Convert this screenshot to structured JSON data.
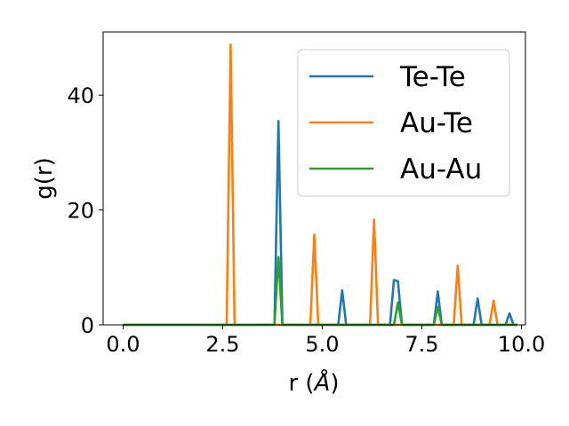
{
  "chart_data": {
    "type": "line",
    "ylabel": "g(r)",
    "xlabel_prefix": "r (",
    "xlabel_unit": "Å",
    "xlabel_suffix": ")",
    "xlim": [
      -0.5,
      10.1
    ],
    "ylim": [
      0,
      51
    ],
    "xticks": [
      0.0,
      2.5,
      5.0,
      7.5,
      10.0
    ],
    "xtick_labels": [
      "0.0",
      "2.5",
      "5.0",
      "7.5",
      "10.0"
    ],
    "yticks": [
      0,
      20,
      40
    ],
    "ytick_labels": [
      "0",
      "20",
      "40"
    ],
    "grid": false,
    "legend_position": "top-right",
    "series": [
      {
        "name": "Te-Te",
        "color": "#1f77b4",
        "x": [
          0.0,
          3.8,
          3.9,
          4.0,
          5.4,
          5.5,
          5.6,
          6.7,
          6.8,
          6.9,
          7.0,
          7.8,
          7.9,
          8.0,
          8.8,
          8.9,
          9.0,
          9.6,
          9.7,
          9.8,
          9.9
        ],
        "y": [
          0,
          0,
          35.5,
          0,
          0,
          6.0,
          0,
          0,
          7.8,
          7.6,
          0,
          0,
          5.8,
          0,
          0,
          4.6,
          0,
          0,
          2.0,
          0,
          0
        ]
      },
      {
        "name": "Au-Te",
        "color": "#ff7f0e",
        "x": [
          0.0,
          2.6,
          2.7,
          2.8,
          4.7,
          4.8,
          4.9,
          6.2,
          6.3,
          6.4,
          8.3,
          8.4,
          8.5,
          9.2,
          9.3,
          9.4,
          9.9
        ],
        "y": [
          0,
          0,
          48.8,
          0,
          0,
          15.7,
          0,
          0,
          18.3,
          0,
          0,
          10.3,
          0,
          0,
          4.2,
          0,
          0
        ]
      },
      {
        "name": "Au-Au",
        "color": "#2ca02c",
        "x": [
          0.0,
          3.8,
          3.9,
          4.0,
          6.8,
          6.9,
          7.0,
          7.8,
          7.9,
          8.0,
          9.9
        ],
        "y": [
          0,
          0,
          11.8,
          0,
          0,
          3.9,
          0,
          0,
          3.1,
          0,
          0
        ]
      }
    ]
  }
}
